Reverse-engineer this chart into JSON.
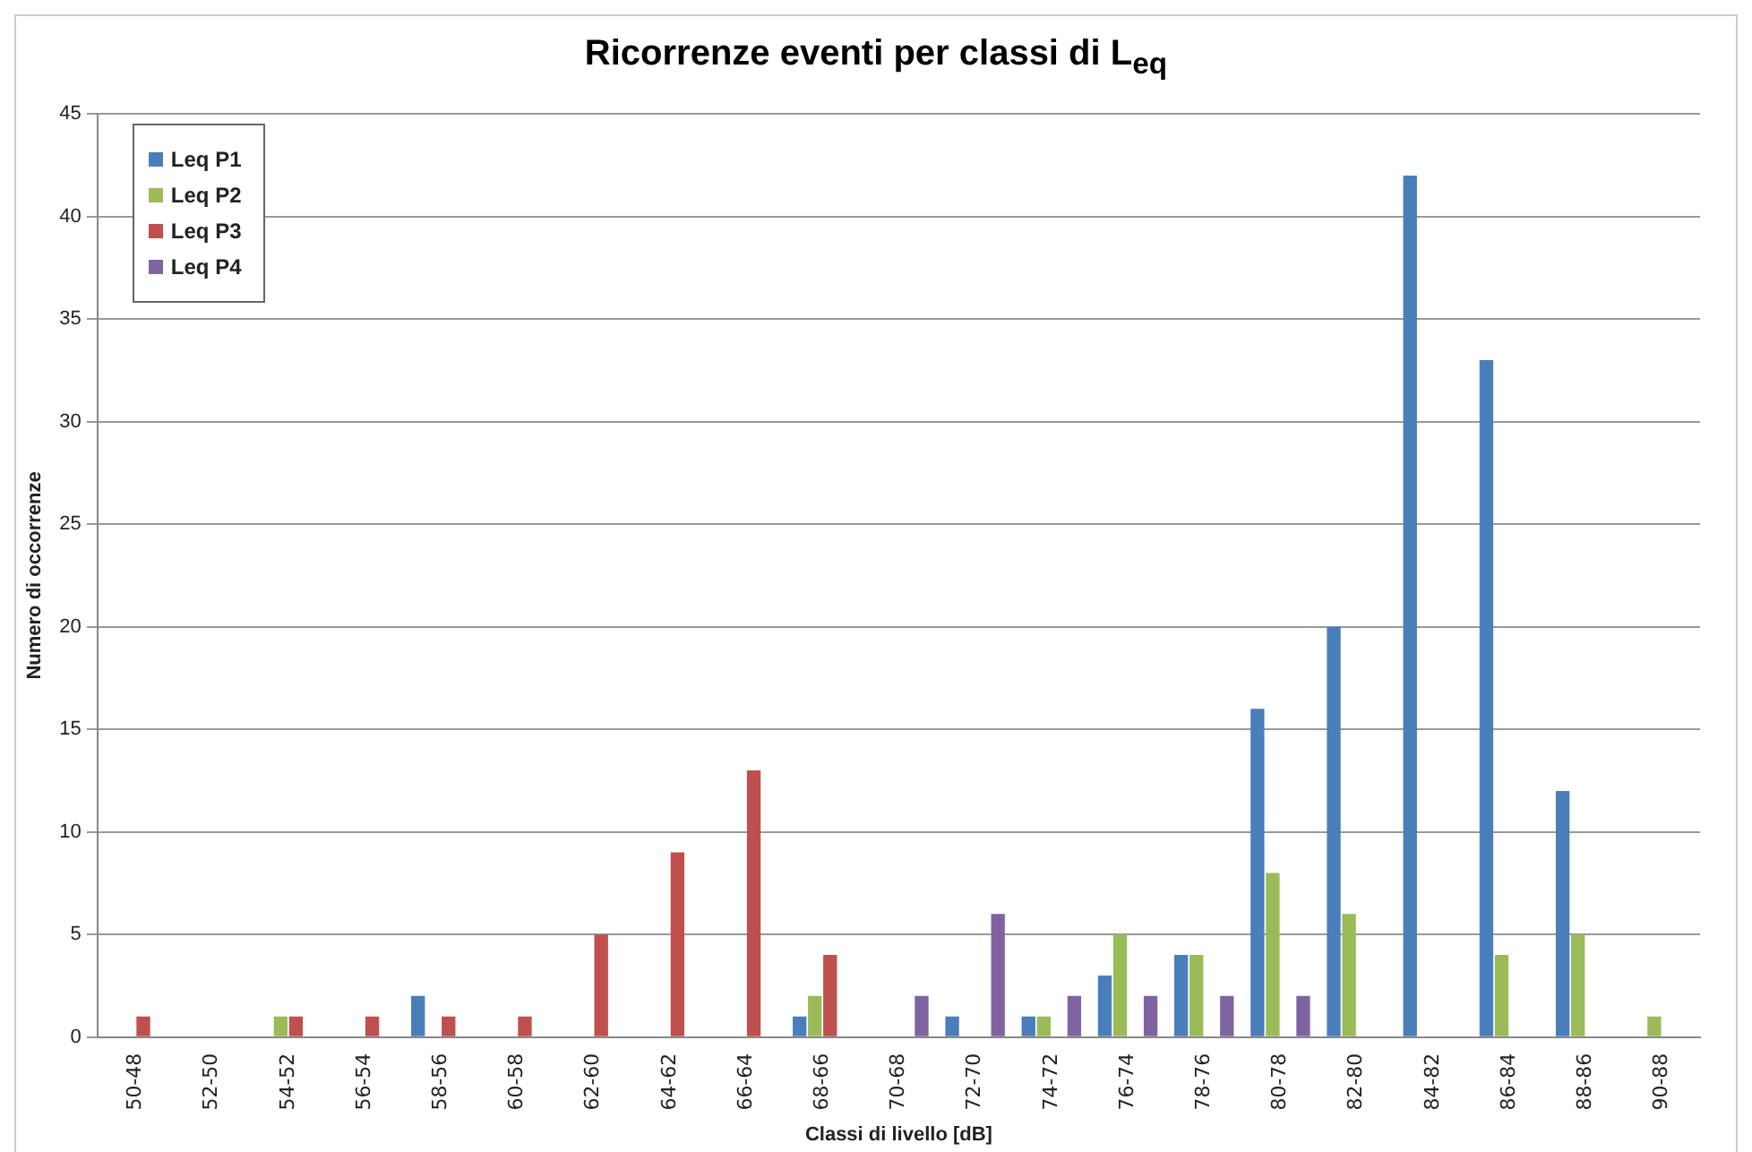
{
  "chart_data": {
    "type": "bar",
    "title": "Ricorrenze eventi per classi di L$_{eq}$",
    "xlabel": "Classi di livello [dB]",
    "ylabel": "Numero di occorrenze",
    "categories": [
      "50-48",
      "52-50",
      "54-52",
      "56-54",
      "58-56",
      "60-58",
      "62-60",
      "64-62",
      "66-64",
      "68-66",
      "70-68",
      "72-70",
      "74-72",
      "76-74",
      "78-76",
      "80-78",
      "82-80",
      "84-82",
      "86-84",
      "88-86",
      "90-88"
    ],
    "series": [
      {
        "name": "Leq P1",
        "color": "#4a7ebb",
        "values": [
          0,
          0,
          0,
          0,
          2,
          0,
          0,
          0,
          0,
          1,
          0,
          1,
          1,
          3,
          4,
          16,
          20,
          42,
          33,
          12,
          0
        ]
      },
      {
        "name": "Leq P2",
        "color": "#9bbb59",
        "values": [
          0,
          0,
          1,
          0,
          0,
          0,
          0,
          0,
          0,
          2,
          0,
          0,
          1,
          5,
          4,
          8,
          6,
          0,
          4,
          5,
          1
        ]
      },
      {
        "name": "Leq P3",
        "color": "#c0504d",
        "values": [
          1,
          0,
          1,
          1,
          1,
          1,
          5,
          9,
          13,
          4,
          0,
          0,
          0,
          0,
          0,
          0,
          0,
          0,
          0,
          0,
          0
        ]
      },
      {
        "name": "Leq P4",
        "color": "#8064a2",
        "values": [
          0,
          0,
          0,
          0,
          0,
          0,
          0,
          0,
          0,
          0,
          2,
          6,
          2,
          2,
          2,
          2,
          0,
          0,
          0,
          0,
          0
        ]
      }
    ],
    "ylim": [
      0,
      45
    ],
    "yticks": [
      0,
      5,
      10,
      15,
      20,
      25,
      30,
      35,
      40,
      45
    ],
    "grid": "y",
    "legend": "top left"
  }
}
